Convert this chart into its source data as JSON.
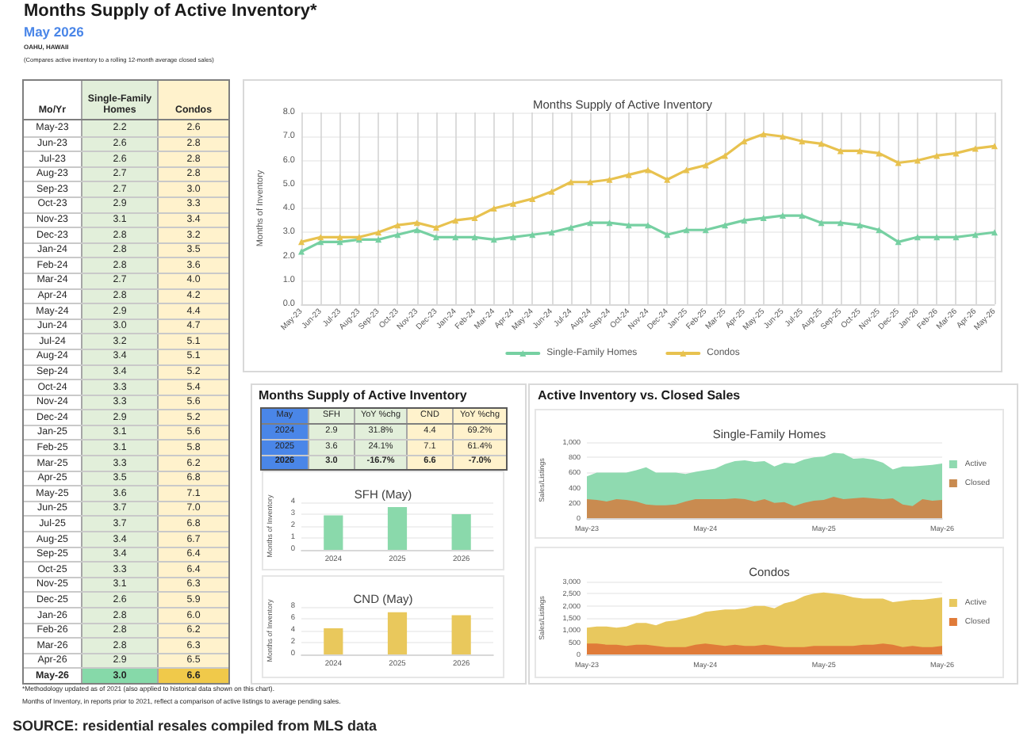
{
  "chart_data": [
    {
      "type": "other",
      "title": "Months Supply of Active Inventory*",
      "subtitle": "May 2026",
      "annotations": [
        "OAHU, HAWAII",
        "(Compares active inventory to a rolling 12-month average closed sales)",
        "*Methodology updated as of 2021 (also applied to historical data shown on this chart).",
        "Months of Inventory, in reports prior to 2021, reflect a comparison of active listings to average pending sales.",
        "SOURCE: residential resales compiled from MLS data"
      ]
    },
    {
      "type": "other",
      "annotations": [
        "Mo/Yr",
        "Single-Family Homes",
        "Condos",
        "May-23",
        "2.2",
        "2.6",
        "Jun-23",
        "2.6",
        "2.8",
        "Jul-23",
        "2.6",
        "2.8",
        "Aug-23",
        "2.7",
        "2.8",
        "Sep-23",
        "2.7",
        "3.0",
        "Oct-23",
        "2.9",
        "3.3",
        "Nov-23",
        "3.1",
        "3.4",
        "Dec-23",
        "2.8",
        "3.2",
        "Jan-24",
        "2.8",
        "3.5",
        "Feb-24",
        "2.8",
        "3.6",
        "Mar-24",
        "2.7",
        "4.0",
        "Apr-24",
        "2.8",
        "4.2",
        "May-24",
        "2.9",
        "4.4",
        "Jun-24",
        "3.0",
        "4.7",
        "Jul-24",
        "3.2",
        "5.1",
        "Aug-24",
        "3.4",
        "5.1",
        "Sep-24",
        "3.4",
        "5.2",
        "Oct-24",
        "3.3",
        "5.4",
        "Nov-24",
        "3.3",
        "5.6",
        "Dec-24",
        "2.9",
        "5.2",
        "Jan-25",
        "3.1",
        "5.6",
        "Feb-25",
        "3.1",
        "5.8",
        "Mar-25",
        "3.3",
        "6.2",
        "Apr-25",
        "3.5",
        "6.8",
        "May-25",
        "3.6",
        "7.1",
        "Jun-25",
        "3.7",
        "7.0",
        "Jul-25",
        "3.7",
        "6.8",
        "Aug-25",
        "3.4",
        "6.7",
        "Sep-25",
        "3.4",
        "6.4",
        "Oct-25",
        "3.3",
        "6.4",
        "Nov-25",
        "3.1",
        "6.3",
        "Dec-25",
        "2.6",
        "5.9",
        "Jan-26",
        "2.8",
        "6.0",
        "Feb-26",
        "2.8",
        "6.2",
        "Mar-26",
        "2.8",
        "6.3",
        "Apr-26",
        "2.9",
        "6.5",
        "May-26",
        "3.0",
        "6.6"
      ]
    },
    {
      "type": "line",
      "title": "Months Supply of Active Inventory",
      "ylabel": "Months of Inventory",
      "categories": [
        "May-23",
        "Jun-23",
        "Jul-23",
        "Aug-23",
        "Sep-23",
        "Oct-23",
        "Nov-23",
        "Dec-23",
        "Jan-24",
        "Feb-24",
        "Mar-24",
        "Apr-24",
        "May-24",
        "Jun-24",
        "Jul-24",
        "Aug-24",
        "Sep-24",
        "Oct-24",
        "Nov-24",
        "Dec-24",
        "Jan-25",
        "Feb-25",
        "Mar-25",
        "Apr-25",
        "May-25",
        "Jun-25",
        "Jul-25",
        "Aug-25",
        "Sep-25",
        "Oct-25",
        "Nov-25",
        "Dec-25",
        "Jan-26",
        "Feb-26",
        "Mar-26",
        "Apr-26",
        "May-26"
      ],
      "series": [
        {
          "name": "Single-Family Homes",
          "color": "#76d0a2",
          "values": [
            2.2,
            2.6,
            2.6,
            2.7,
            2.7,
            2.9,
            3.1,
            2.8,
            2.8,
            2.8,
            2.7,
            2.8,
            2.9,
            3.0,
            3.2,
            3.4,
            3.4,
            3.3,
            3.3,
            2.9,
            3.1,
            3.1,
            3.3,
            3.5,
            3.6,
            3.7,
            3.7,
            3.4,
            3.4,
            3.3,
            3.1,
            2.6,
            2.8,
            2.8,
            2.8,
            2.9,
            3.0
          ]
        },
        {
          "name": "Condos",
          "color": "#e8c24f",
          "values": [
            2.6,
            2.8,
            2.8,
            2.8,
            3.0,
            3.3,
            3.4,
            3.2,
            3.5,
            3.6,
            4.0,
            4.2,
            4.4,
            4.7,
            5.1,
            5.1,
            5.2,
            5.4,
            5.6,
            5.2,
            5.6,
            5.8,
            6.2,
            6.8,
            7.1,
            7.0,
            6.8,
            6.7,
            6.4,
            6.4,
            6.3,
            5.9,
            6.0,
            6.2,
            6.3,
            6.5,
            6.6
          ]
        }
      ],
      "ylim": [
        0,
        8
      ],
      "yticks": [
        {
          "value": 0,
          "label": "0.0"
        },
        {
          "value": 1,
          "label": "1.0"
        },
        {
          "value": 2,
          "label": "2.0"
        },
        {
          "value": 3,
          "label": "3.0"
        },
        {
          "value": 4,
          "label": "4.0"
        },
        {
          "value": 5,
          "label": "5.0"
        },
        {
          "value": 6,
          "label": "6.0"
        },
        {
          "value": 7,
          "label": "7.0"
        },
        {
          "value": 8,
          "label": "8.0"
        }
      ],
      "grid": true,
      "legend": "bottom",
      "marker": "triangle"
    },
    {
      "type": "other",
      "title": "Months Supply of Active Inventory",
      "annotations": [
        "May",
        "SFH",
        "YoY %chg",
        "CND",
        "YoY %chg",
        "2024",
        "2.9",
        "31.8%",
        "4.4",
        "69.2%",
        "2025",
        "3.6",
        "24.1%",
        "7.1",
        "61.4%",
        "2026",
        "3.0",
        "-16.7%",
        "6.6",
        "-7.0%"
      ]
    },
    {
      "type": "bar",
      "title": "SFH (May)",
      "ylabel": "Months of Inventory",
      "categories": [
        "2024",
        "2025",
        "2026"
      ],
      "values": [
        2.9,
        3.6,
        3.0
      ],
      "color": "#8ad9ab",
      "ylim": [
        0,
        4
      ],
      "yticks": [
        0,
        1,
        2,
        3,
        4
      ],
      "grid": "y"
    },
    {
      "type": "bar",
      "title": "CND (May)",
      "ylabel": "Months of Inventory",
      "categories": [
        "2024",
        "2025",
        "2026"
      ],
      "values": [
        4.4,
        7.1,
        6.6
      ],
      "color": "#e9c85c",
      "ylim": [
        0,
        8
      ],
      "yticks": [
        0,
        2,
        4,
        6,
        8
      ],
      "grid": "y"
    },
    {
      "type": "area",
      "title": "Single-Family Homes",
      "ylabel": "Sales/Listings",
      "annotations": [
        "Active Inventory vs. Closed Sales"
      ],
      "categories": [
        "May-23",
        null,
        null,
        null,
        null,
        null,
        null,
        null,
        null,
        null,
        null,
        null,
        "May-24",
        null,
        null,
        null,
        null,
        null,
        null,
        null,
        null,
        null,
        null,
        null,
        "May-25",
        null,
        null,
        null,
        null,
        null,
        null,
        null,
        null,
        null,
        null,
        null,
        "May-26"
      ],
      "series": [
        {
          "name": "Active",
          "color": "#8fdab0",
          "values": [
            550,
            600,
            600,
            600,
            600,
            630,
            670,
            600,
            600,
            600,
            580,
            610,
            630,
            650,
            710,
            750,
            760,
            740,
            750,
            680,
            730,
            720,
            770,
            800,
            810,
            860,
            850,
            780,
            790,
            770,
            730,
            640,
            680,
            680,
            690,
            700,
            720
          ]
        },
        {
          "name": "Closed",
          "color": "#c98b50",
          "values": [
            250,
            240,
            220,
            250,
            240,
            220,
            180,
            170,
            170,
            180,
            220,
            250,
            250,
            250,
            250,
            260,
            250,
            220,
            250,
            200,
            210,
            160,
            200,
            230,
            240,
            280,
            250,
            260,
            270,
            260,
            250,
            260,
            180,
            160,
            250,
            230,
            240
          ]
        }
      ],
      "ylim": [
        0,
        1000
      ],
      "yticks": [
        0,
        200,
        400,
        600,
        800,
        {
          "value": 1000,
          "label": "1,000"
        }
      ],
      "grid": "y",
      "legend": "right"
    },
    {
      "type": "area",
      "title": "Condos",
      "ylabel": "Sales/Listings",
      "categories": [
        "May-23",
        null,
        null,
        null,
        null,
        null,
        null,
        null,
        null,
        null,
        null,
        null,
        "May-24",
        null,
        null,
        null,
        null,
        null,
        null,
        null,
        null,
        null,
        null,
        null,
        "May-25",
        null,
        null,
        null,
        null,
        null,
        null,
        null,
        null,
        null,
        null,
        null,
        "May-26"
      ],
      "series": [
        {
          "name": "Active",
          "color": "#e8c85e",
          "values": [
            1100,
            1150,
            1150,
            1100,
            1150,
            1300,
            1300,
            1200,
            1350,
            1400,
            1500,
            1600,
            1750,
            1800,
            1850,
            1850,
            1900,
            2000,
            2000,
            1900,
            2100,
            2200,
            2400,
            2500,
            2550,
            2500,
            2450,
            2350,
            2300,
            2300,
            2300,
            2150,
            2200,
            2250,
            2250,
            2300,
            2350
          ]
        },
        {
          "name": "Closed",
          "color": "#e07b39",
          "values": [
            450,
            450,
            400,
            400,
            350,
            400,
            400,
            350,
            300,
            300,
            300,
            400,
            450,
            400,
            350,
            400,
            350,
            350,
            400,
            350,
            300,
            300,
            300,
            350,
            350,
            350,
            350,
            350,
            400,
            400,
            450,
            400,
            300,
            350,
            300,
            300,
            350
          ]
        }
      ],
      "ylim": [
        0,
        3000
      ],
      "yticks": [
        0,
        500,
        {
          "value": 1000,
          "label": "1,000"
        },
        {
          "value": 1500,
          "label": "1,500"
        },
        {
          "value": 2000,
          "label": "2,000"
        },
        {
          "value": 2500,
          "label": "2,500"
        },
        {
          "value": 3000,
          "label": "3,000"
        }
      ],
      "grid": "y",
      "legend": "right"
    }
  ]
}
